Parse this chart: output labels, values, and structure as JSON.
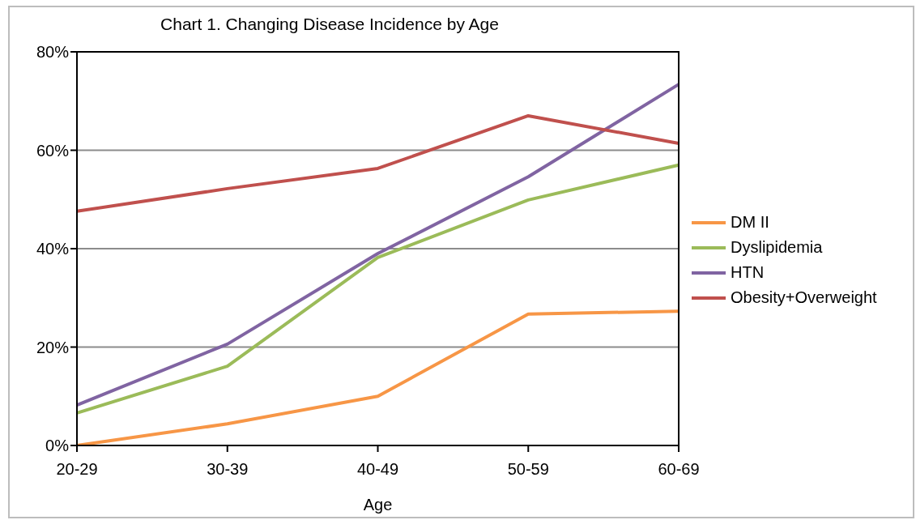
{
  "chart_data": {
    "type": "line",
    "title": "Chart 1. Changing Disease Incidence by Age",
    "xlabel": "Age",
    "categories": [
      "20-29",
      "30-39",
      "40-49",
      "50-59",
      "60-69"
    ],
    "series": [
      {
        "name": "DM II",
        "color": "#f79646",
        "values": [
          0,
          4.4,
          10,
          26.7,
          27.3
        ]
      },
      {
        "name": "Dyslipidemia",
        "color": "#9bbb59",
        "values": [
          6.6,
          16.1,
          38.2,
          49.9,
          57
        ]
      },
      {
        "name": "HTN",
        "color": "#8064a2",
        "values": [
          8.2,
          20.6,
          39,
          54.6,
          73.4
        ]
      },
      {
        "name": "Obesity+Overweight",
        "color": "#c0504d",
        "values": [
          47.6,
          52.2,
          56.3,
          67,
          61.4
        ]
      }
    ],
    "ylim": [
      0,
      80
    ],
    "yticks": [
      {
        "value": 0,
        "label": "0%"
      },
      {
        "value": 20,
        "label": "20%"
      },
      {
        "value": 40,
        "label": "40%"
      },
      {
        "value": 60,
        "label": "60%"
      },
      {
        "value": 80,
        "label": "80%"
      }
    ],
    "grid": "y",
    "legend": "right",
    "marker": "none",
    "line_style": "solid"
  }
}
